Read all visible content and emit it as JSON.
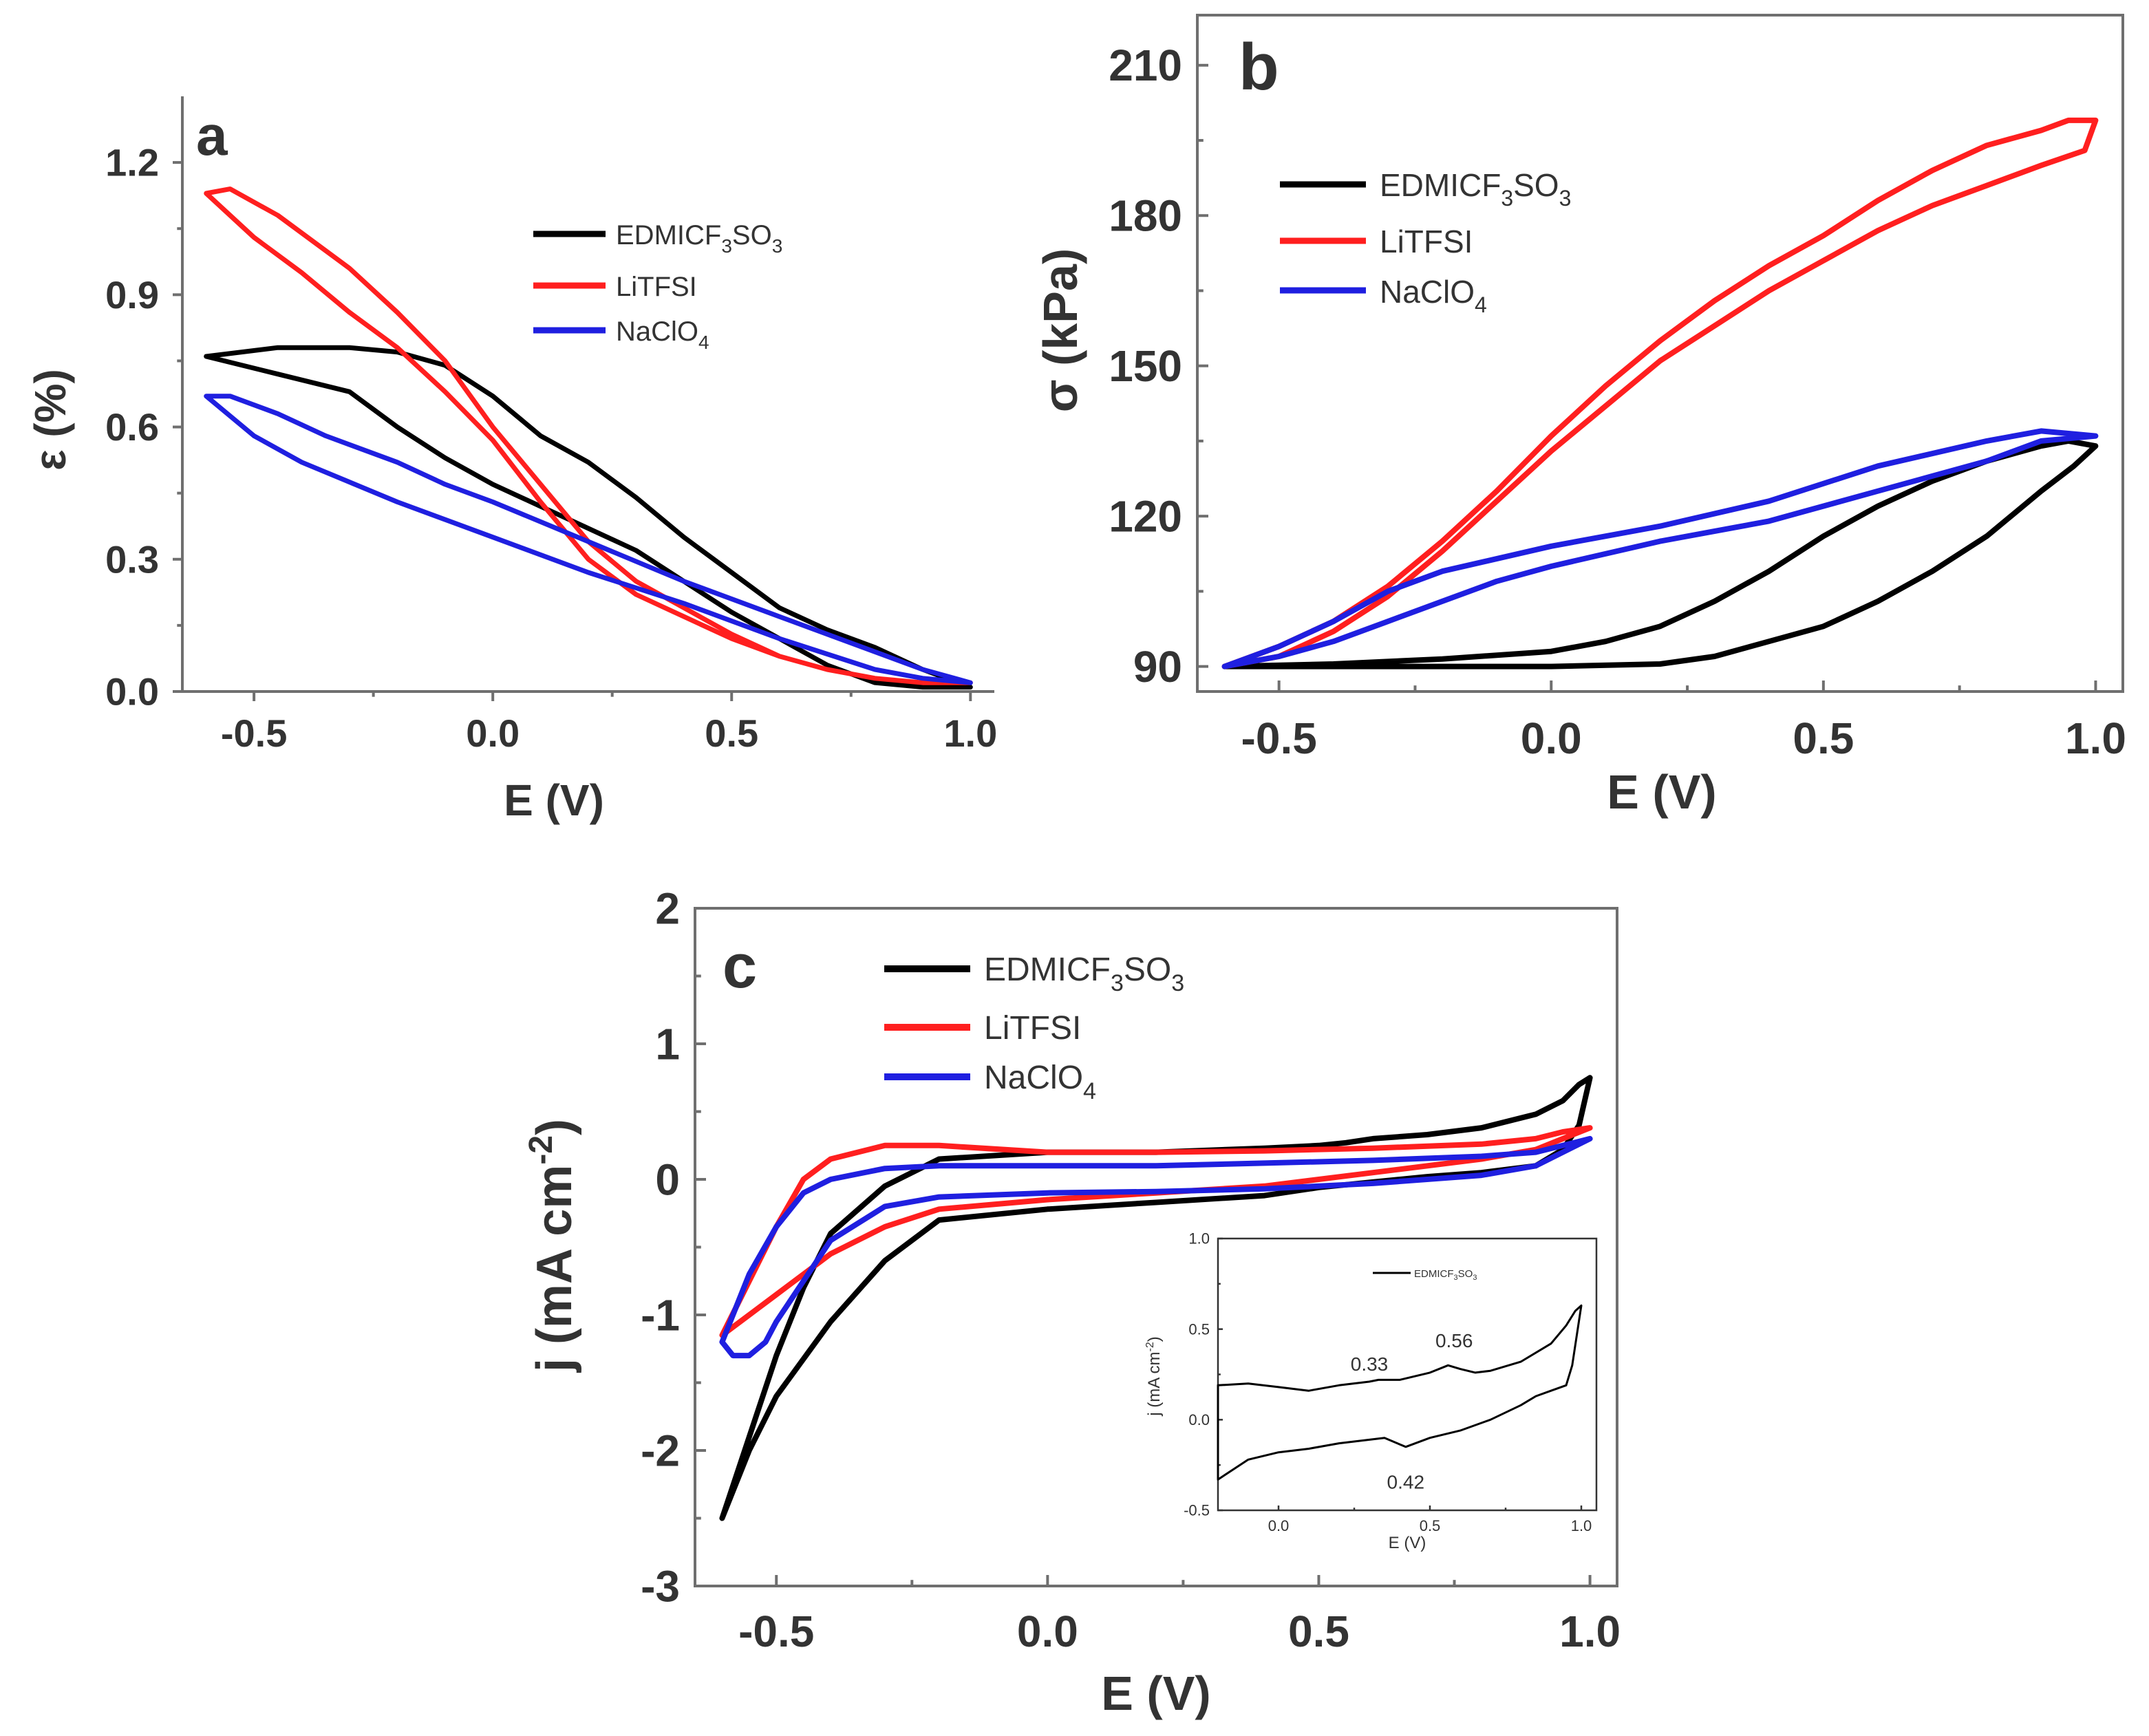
{
  "colors": {
    "EDMICF3SO3": "#000000",
    "LiTFSI": "#ff1f1f",
    "NaClO4": "#1f1fe0"
  },
  "legend": {
    "edmi": "EDMICF3SO3",
    "edmi_main": "EDMICF",
    "edmi_sub1": "3",
    "edmi_mid": "SO",
    "edmi_sub2": "3",
    "litfsi": "LiTFSI",
    "naclo": "NaClO",
    "naclo_sub": "4"
  },
  "chart_data": [
    {
      "panel": "a",
      "type": "line",
      "xlabel": "E (V)",
      "ylabel": "ε (%)",
      "xlim": [
        -0.65,
        1.05
      ],
      "ylim": [
        0.0,
        1.35
      ],
      "xticks": [
        -0.5,
        0.0,
        0.5,
        1.0
      ],
      "xtick_labels": [
        "-0.5",
        "0.0",
        "0.5",
        "1.0"
      ],
      "yticks": [
        0.0,
        0.3,
        0.6,
        0.9,
        1.2
      ],
      "ytick_labels": [
        "0.0",
        "0.3",
        "0.6",
        "0.9",
        "1.2"
      ],
      "legend_position": "upper-right",
      "series": [
        {
          "name": "EDMICF3SO3",
          "x": [
            -0.6,
            -0.45,
            -0.3,
            -0.2,
            -0.1,
            0.0,
            0.1,
            0.2,
            0.3,
            0.4,
            0.5,
            0.6,
            0.7,
            0.8,
            0.9,
            1.0,
            0.9,
            0.8,
            0.7,
            0.6,
            0.5,
            0.4,
            0.3,
            0.2,
            0.1,
            0.0,
            -0.1,
            -0.2,
            -0.3,
            -0.45,
            -0.6
          ],
          "y": [
            0.76,
            0.78,
            0.78,
            0.77,
            0.74,
            0.67,
            0.58,
            0.52,
            0.44,
            0.35,
            0.27,
            0.19,
            0.14,
            0.1,
            0.05,
            0.01,
            0.01,
            0.02,
            0.06,
            0.12,
            0.18,
            0.25,
            0.32,
            0.37,
            0.42,
            0.47,
            0.53,
            0.6,
            0.68,
            0.72,
            0.76
          ]
        },
        {
          "name": "LiTFSI",
          "x": [
            -0.6,
            -0.55,
            -0.45,
            -0.3,
            -0.2,
            -0.1,
            0.0,
            0.1,
            0.2,
            0.3,
            0.4,
            0.5,
            0.6,
            0.7,
            0.8,
            0.9,
            1.0,
            0.9,
            0.8,
            0.7,
            0.6,
            0.5,
            0.4,
            0.3,
            0.2,
            0.1,
            0.0,
            -0.1,
            -0.2,
            -0.3,
            -0.4,
            -0.5,
            -0.6
          ],
          "y": [
            1.13,
            1.14,
            1.08,
            0.96,
            0.86,
            0.75,
            0.6,
            0.47,
            0.34,
            0.25,
            0.19,
            0.13,
            0.08,
            0.05,
            0.03,
            0.02,
            0.02,
            0.02,
            0.03,
            0.05,
            0.08,
            0.12,
            0.17,
            0.22,
            0.3,
            0.43,
            0.57,
            0.68,
            0.78,
            0.86,
            0.95,
            1.03,
            1.13
          ]
        },
        {
          "name": "NaClO4",
          "x": [
            -0.6,
            -0.55,
            -0.45,
            -0.35,
            -0.2,
            -0.1,
            0.0,
            0.2,
            0.4,
            0.6,
            0.8,
            0.9,
            1.0,
            0.9,
            0.8,
            0.6,
            0.4,
            0.2,
            0.0,
            -0.2,
            -0.4,
            -0.5,
            -0.6
          ],
          "y": [
            0.67,
            0.67,
            0.63,
            0.58,
            0.52,
            0.47,
            0.43,
            0.34,
            0.25,
            0.17,
            0.09,
            0.05,
            0.02,
            0.03,
            0.05,
            0.12,
            0.2,
            0.27,
            0.35,
            0.43,
            0.52,
            0.58,
            0.67
          ]
        }
      ]
    },
    {
      "panel": "b",
      "type": "line",
      "xlabel": "E (V)",
      "ylabel": "σ (kPa)",
      "xlim": [
        -0.65,
        1.05
      ],
      "ylim": [
        85,
        220
      ],
      "xticks": [
        -0.5,
        0.0,
        0.5,
        1.0
      ],
      "xtick_labels": [
        "-0.5",
        "0.0",
        "0.5",
        "1.0"
      ],
      "yticks": [
        90,
        120,
        150,
        180,
        210
      ],
      "ytick_labels": [
        "90",
        "120",
        "150",
        "180",
        "210"
      ],
      "legend_position": "upper-left",
      "series": [
        {
          "name": "EDMICF3SO3",
          "x": [
            -0.6,
            -0.4,
            -0.2,
            0.0,
            0.2,
            0.3,
            0.4,
            0.5,
            0.6,
            0.7,
            0.8,
            0.9,
            0.96,
            1.0,
            0.95,
            0.9,
            0.8,
            0.7,
            0.6,
            0.5,
            0.4,
            0.3,
            0.2,
            0.1,
            0.0,
            -0.2,
            -0.4,
            -0.6
          ],
          "y": [
            90,
            90,
            90,
            90,
            90.5,
            92,
            95,
            98,
            103,
            109,
            116,
            125,
            130,
            134,
            135,
            134,
            131,
            127,
            122,
            116,
            109,
            103,
            98,
            95,
            93,
            91.5,
            90.5,
            90
          ]
        },
        {
          "name": "LiTFSI",
          "x": [
            -0.6,
            -0.5,
            -0.4,
            -0.3,
            -0.2,
            -0.1,
            0.0,
            0.1,
            0.2,
            0.3,
            0.4,
            0.5,
            0.6,
            0.7,
            0.8,
            0.9,
            0.98,
            1.0,
            0.95,
            0.9,
            0.8,
            0.7,
            0.6,
            0.5,
            0.4,
            0.3,
            0.2,
            0.1,
            0.0,
            -0.1,
            -0.2,
            -0.3,
            -0.4,
            -0.5,
            -0.6
          ],
          "y": [
            90,
            92,
            97,
            104,
            113,
            123,
            133,
            142,
            151,
            158,
            165,
            171,
            177,
            182,
            186,
            190,
            193,
            199,
            199,
            197,
            194,
            189,
            183,
            176,
            170,
            163,
            155,
            146,
            136,
            125,
            115,
            106,
            99,
            94,
            90
          ]
        },
        {
          "name": "NaClO4",
          "x": [
            -0.6,
            -0.5,
            -0.4,
            -0.3,
            -0.2,
            -0.1,
            0.0,
            0.2,
            0.4,
            0.6,
            0.8,
            0.9,
            1.0,
            0.9,
            0.8,
            0.6,
            0.4,
            0.2,
            0.0,
            -0.2,
            -0.3,
            -0.4,
            -0.5,
            -0.6
          ],
          "y": [
            90,
            92,
            95,
            99,
            103,
            107,
            110,
            115,
            119,
            125,
            131,
            135,
            136,
            137,
            135,
            130,
            123,
            118,
            114,
            109,
            105,
            99,
            94,
            90
          ]
        }
      ]
    },
    {
      "panel": "c",
      "type": "line",
      "xlabel": "E (V)",
      "ylabel": "j (mA cm-2)",
      "ylabel_main": "j (mA cm",
      "ylabel_sup": "-2",
      "ylabel_end": ")",
      "xlim": [
        -0.65,
        1.05
      ],
      "ylim": [
        -3,
        2
      ],
      "xticks": [
        -0.5,
        0.0,
        0.5,
        1.0
      ],
      "xtick_labels": [
        "-0.5",
        "0.0",
        "0.5",
        "1.0"
      ],
      "yticks": [
        -3,
        -2,
        -1,
        0,
        1,
        2
      ],
      "ytick_labels": [
        "-3",
        "-2",
        "-1",
        "0",
        "1",
        "2"
      ],
      "legend_position": "upper-left",
      "series": [
        {
          "name": "EDMICF3SO3",
          "x": [
            -0.6,
            -0.55,
            -0.5,
            -0.45,
            -0.4,
            -0.3,
            -0.2,
            0.0,
            0.2,
            0.4,
            0.5,
            0.55,
            0.6,
            0.7,
            0.8,
            0.9,
            0.95,
            0.98,
            1.0,
            0.98,
            0.95,
            0.9,
            0.8,
            0.7,
            0.6,
            0.5,
            0.4,
            0.2,
            0.0,
            -0.2,
            -0.3,
            -0.4,
            -0.5,
            -0.55,
            -0.6
          ],
          "y": [
            -2.5,
            -1.9,
            -1.3,
            -0.8,
            -0.4,
            -0.05,
            0.15,
            0.2,
            0.2,
            0.23,
            0.25,
            0.27,
            0.3,
            0.33,
            0.38,
            0.48,
            0.58,
            0.7,
            0.75,
            0.4,
            0.22,
            0.1,
            0.05,
            0.02,
            -0.02,
            -0.06,
            -0.12,
            -0.17,
            -0.22,
            -0.3,
            -0.6,
            -1.05,
            -1.6,
            -2.0,
            -2.5
          ]
        },
        {
          "name": "LiTFSI",
          "x": [
            -0.6,
            -0.55,
            -0.5,
            -0.45,
            -0.4,
            -0.3,
            -0.2,
            0.0,
            0.2,
            0.4,
            0.6,
            0.8,
            0.9,
            0.95,
            1.0,
            0.95,
            0.9,
            0.8,
            0.6,
            0.4,
            0.2,
            0.0,
            -0.2,
            -0.3,
            -0.4,
            -0.5,
            -0.55,
            -0.6
          ],
          "y": [
            -1.15,
            -0.75,
            -0.35,
            0.0,
            0.15,
            0.25,
            0.25,
            0.2,
            0.2,
            0.21,
            0.23,
            0.26,
            0.3,
            0.35,
            0.38,
            0.3,
            0.22,
            0.15,
            0.05,
            -0.05,
            -0.1,
            -0.15,
            -0.22,
            -0.35,
            -0.55,
            -0.85,
            -1.0,
            -1.15
          ]
        },
        {
          "name": "NaClO4",
          "x": [
            -0.6,
            -0.55,
            -0.5,
            -0.45,
            -0.4,
            -0.3,
            -0.2,
            0.0,
            0.2,
            0.4,
            0.6,
            0.8,
            0.9,
            0.95,
            1.0,
            0.95,
            0.9,
            0.8,
            0.6,
            0.4,
            0.2,
            0.0,
            -0.2,
            -0.3,
            -0.4,
            -0.45,
            -0.5,
            -0.52,
            -0.55,
            -0.58,
            -0.6
          ],
          "y": [
            -1.2,
            -0.7,
            -0.35,
            -0.1,
            0.0,
            0.08,
            0.1,
            0.1,
            0.1,
            0.12,
            0.14,
            0.17,
            0.2,
            0.25,
            0.3,
            0.2,
            0.1,
            0.03,
            -0.03,
            -0.07,
            -0.09,
            -0.1,
            -0.13,
            -0.2,
            -0.45,
            -0.75,
            -1.05,
            -1.2,
            -1.3,
            -1.3,
            -1.2
          ]
        }
      ],
      "inset": {
        "xlabel": "E (V)",
        "ylabel": "j (mA cm-2)",
        "ylabel_main": "j (mA cm",
        "ylabel_sup": "-2",
        "ylabel_end": ")",
        "xlim": [
          -0.2,
          1.05
        ],
        "ylim": [
          -0.5,
          1.0
        ],
        "xticks": [
          0.0,
          0.5,
          1.0
        ],
        "xtick_labels": [
          "0.0",
          "0.5",
          "1.0"
        ],
        "yticks": [
          -0.5,
          0.0,
          0.5,
          1.0
        ],
        "ytick_labels": [
          "-0.5",
          "0.0",
          "0.5",
          "1.0"
        ],
        "legend": "EDMICF3SO3",
        "annotations": [
          {
            "text": "0.33",
            "x": 0.3,
            "y": 0.27
          },
          {
            "text": "0.56",
            "x": 0.58,
            "y": 0.4
          },
          {
            "text": "0.42",
            "x": 0.42,
            "y": -0.38
          }
        ],
        "series": [
          {
            "name": "EDMICF3SO3",
            "x": [
              -0.2,
              -0.1,
              0.0,
              0.1,
              0.2,
              0.3,
              0.33,
              0.4,
              0.5,
              0.56,
              0.6,
              0.65,
              0.7,
              0.8,
              0.9,
              0.95,
              0.98,
              1.0,
              0.97,
              0.95,
              0.9,
              0.85,
              0.8,
              0.7,
              0.6,
              0.5,
              0.42,
              0.35,
              0.2,
              0.1,
              0.0,
              -0.1,
              -0.2
            ],
            "y": [
              0.19,
              0.2,
              0.18,
              0.16,
              0.19,
              0.21,
              0.22,
              0.22,
              0.26,
              0.3,
              0.28,
              0.26,
              0.27,
              0.32,
              0.42,
              0.52,
              0.6,
              0.63,
              0.3,
              0.19,
              0.16,
              0.13,
              0.08,
              0.0,
              -0.06,
              -0.1,
              -0.15,
              -0.1,
              -0.13,
              -0.16,
              -0.18,
              -0.22,
              -0.33
            ]
          }
        ]
      }
    }
  ]
}
